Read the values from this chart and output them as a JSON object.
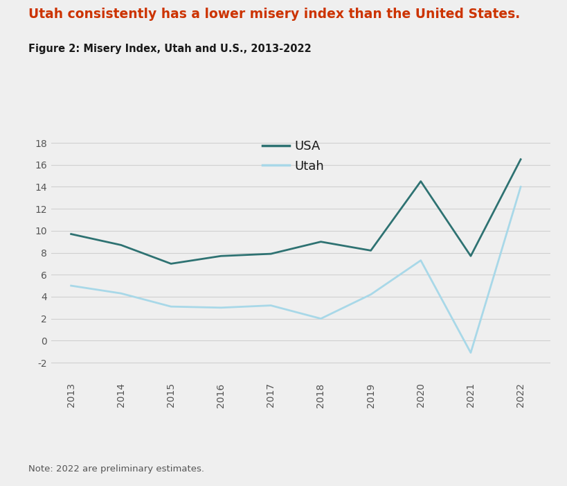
{
  "title": "Utah consistently has a lower misery index than the United States.",
  "subtitle": "Figure 2: Misery Index, Utah and U.S., 2013-2022",
  "note": "Note: 2022 are preliminary estimates.",
  "years": [
    2013,
    2014,
    2015,
    2016,
    2017,
    2018,
    2019,
    2020,
    2021,
    2022
  ],
  "usa_values": [
    9.7,
    8.7,
    7.0,
    7.7,
    7.9,
    9.0,
    8.2,
    14.5,
    7.7,
    16.5
  ],
  "utah_values": [
    5.0,
    4.3,
    3.1,
    3.0,
    3.2,
    2.0,
    4.2,
    7.3,
    -1.1,
    14.0
  ],
  "usa_color": "#2e7272",
  "utah_color": "#a8d8e8",
  "title_color": "#cc3300",
  "subtitle_color": "#1a1a1a",
  "note_color": "#555555",
  "background_color": "#efefef",
  "plot_background_color": "#efefef",
  "grid_color": "#d0d0d0",
  "ylim": [
    -3.5,
    19.5
  ],
  "yticks": [
    -2,
    0,
    2,
    4,
    6,
    8,
    10,
    12,
    14,
    16,
    18
  ],
  "line_width": 2.0,
  "legend_labels": [
    "USA",
    "Utah"
  ],
  "title_fontsize": 13.5,
  "subtitle_fontsize": 10.5,
  "note_fontsize": 9.5,
  "tick_fontsize": 10,
  "legend_fontsize": 13
}
